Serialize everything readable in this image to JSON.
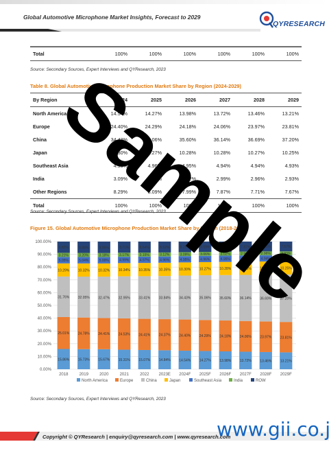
{
  "header": {
    "title": "Global Automotive Microphone Market Insights, Forecast to 2029",
    "logo_text": "QYRESEARCH"
  },
  "top_total_row": {
    "label": "Total",
    "values": [
      "100%",
      "100%",
      "100%",
      "100%",
      "100%",
      "100%"
    ]
  },
  "source_text_1": "Source: Secondary Sources, Expert Interviews and QYResearch, 2023",
  "table8": {
    "caption": "Table 8.   Global Automotive Microphone Production Market Share by Region (2024-2029)",
    "header": [
      "By Region",
      "2024",
      "2025",
      "2026",
      "2027",
      "2028",
      "2029"
    ],
    "rows": [
      [
        "North America",
        "14.54%",
        "14.27%",
        "13.98%",
        "13.72%",
        "13.46%",
        "13.21%"
      ],
      [
        "Europe",
        "24.40%",
        "24.29%",
        "24.18%",
        "24.06%",
        "23.97%",
        "23.81%"
      ],
      [
        "China",
        "34.43%",
        "35.06%",
        "35.60%",
        "36.14%",
        "36.69%",
        "37.20%"
      ],
      [
        "Japan",
        "10.30%",
        "10.27%",
        "10.28%",
        "10.28%",
        "10.27%",
        "10.25%"
      ],
      [
        "Southeast Asia",
        "4.95%",
        "4.96%",
        "4.95%",
        "4.94%",
        "4.94%",
        "4.93%"
      ],
      [
        "India",
        "3.09%",
        "3.06%",
        "3.02%",
        "2.99%",
        "2.96%",
        "2.93%"
      ],
      [
        "Other Regions",
        "8.29%",
        "8.09%",
        "7.99%",
        "7.87%",
        "7.71%",
        "7.67%"
      ]
    ],
    "total": [
      "Total",
      "100%",
      "100%",
      "100%",
      "100%",
      "100%",
      "100%"
    ]
  },
  "source_text_2": "Source: Secondary Sources, Expert Interviews and QYResearch, 2023",
  "figure15": {
    "caption": "Figure 15.   Global Automotive Microphone Production Market Share by Region (2018-2029)"
  },
  "chart_data": {
    "type": "bar",
    "stacked": true,
    "categories": [
      "2018",
      "2019",
      "2020",
      "2021",
      "2022",
      "2023E",
      "2024F",
      "2025F",
      "2026F",
      "2027F",
      "2028F",
      "2029F"
    ],
    "ylim": [
      0,
      100
    ],
    "yticks": [
      "0.00%",
      "10.00%",
      "20.00%",
      "30.00%",
      "40.00%",
      "50.00%",
      "60.00%",
      "70.00%",
      "80.00%",
      "90.00%",
      "100.00%"
    ],
    "grid": true,
    "legend_position": "bottom",
    "series": [
      {
        "name": "North America",
        "color": "#5b9bd5",
        "values": [
          15.86,
          15.73,
          15.67,
          15.31,
          15.07,
          14.84,
          14.54,
          14.27,
          13.98,
          13.72,
          13.46,
          13.21
        ],
        "labels": [
          "15.86%",
          "15.73%",
          "15.67%",
          "15.31%",
          "15.07%",
          "14.84%",
          "14.54%",
          "14.27%",
          "13.98%",
          "13.72%",
          "13.46%",
          "13.21%"
        ]
      },
      {
        "name": "Europe",
        "color": "#ed7d31",
        "values": [
          25.01,
          24.78,
          24.41,
          24.53,
          24.41,
          24.37,
          24.4,
          24.29,
          24.18,
          24.06,
          23.97,
          23.81
        ],
        "labels": [
          "25.01%",
          "24.78%",
          "24.41%",
          "24.53%",
          "24.41%",
          "24.37%",
          "24.40%",
          "24.29%",
          "24.18%",
          "24.06%",
          "23.97%",
          "23.81%"
        ]
      },
      {
        "name": "China",
        "color": "#bfbfbf",
        "values": [
          31.76,
          32.05,
          32.47,
          32.95,
          33.41,
          33.84,
          34.43,
          35.06,
          35.6,
          36.14,
          36.69,
          37.2
        ],
        "labels": [
          "31.76%",
          "32.05%",
          "32.47%",
          "32.95%",
          "33.41%",
          "33.84%",
          "34.43%",
          "35.06%",
          "35.60%",
          "36.14%",
          "36.69%",
          "37.20%"
        ]
      },
      {
        "name": "Japan",
        "color": "#ffc000",
        "values": [
          10.29,
          10.32,
          10.32,
          10.34,
          10.35,
          10.35,
          10.3,
          10.27,
          10.28,
          10.28,
          10.27,
          10.25
        ],
        "labels": [
          "10.29%",
          "10.32%",
          "10.32%",
          "10.34%",
          "10.35%",
          "10.35%",
          "10.30%",
          "10.27%",
          "10.28%",
          "10.28%",
          "10.27%",
          "10.25%"
        ]
      },
      {
        "name": "Southeast Asia",
        "color": "#4472c4",
        "values": [
          5.05,
          5.04,
          5.0,
          4.99,
          4.97,
          4.96,
          4.95,
          4.96,
          4.95,
          4.94,
          4.94,
          4.93
        ],
        "labels": [
          "5.05%",
          "5.04%",
          "5.00%",
          "4.99%",
          "4.97%",
          "4.96%",
          "4.95%",
          "4.96%",
          "4.95%",
          "4.94%",
          "4.94%",
          "4.93%"
        ]
      },
      {
        "name": "India",
        "color": "#70ad47",
        "values": [
          3.21,
          3.2,
          3.18,
          3.17,
          3.15,
          3.12,
          3.09,
          3.06,
          3.02,
          2.99,
          2.96,
          2.93
        ],
        "labels": [
          "3.21%",
          "3.20%",
          "3.18%",
          "3.17%",
          "3.15%",
          "3.12%",
          "3.09%",
          "3.06%",
          "3.02%",
          "2.99%",
          "2.96%",
          "2.93%"
        ]
      },
      {
        "name": "ROW",
        "color": "#264478",
        "values": [
          8.82,
          8.88,
          8.95,
          8.71,
          8.64,
          8.52,
          8.29,
          8.09,
          7.99,
          7.87,
          7.71,
          7.67
        ],
        "labels": [
          "8.82%",
          "8.88%",
          "8.95%",
          "8.71%",
          "8.64%",
          "8.52%",
          "8.29%",
          "8.09%",
          "7.99%",
          "7.87%",
          "7.71%",
          "7.67%"
        ]
      }
    ]
  },
  "source_text_3": "Source: Secondary Sources, Expert Interviews and QYResearch, 2023",
  "watermark": "Sample",
  "footer": {
    "copyright": "Copyright © QYResearch | enquiry@qyresearch.com | www.qyresearch.com",
    "gii": "www.gii.co.jp"
  }
}
